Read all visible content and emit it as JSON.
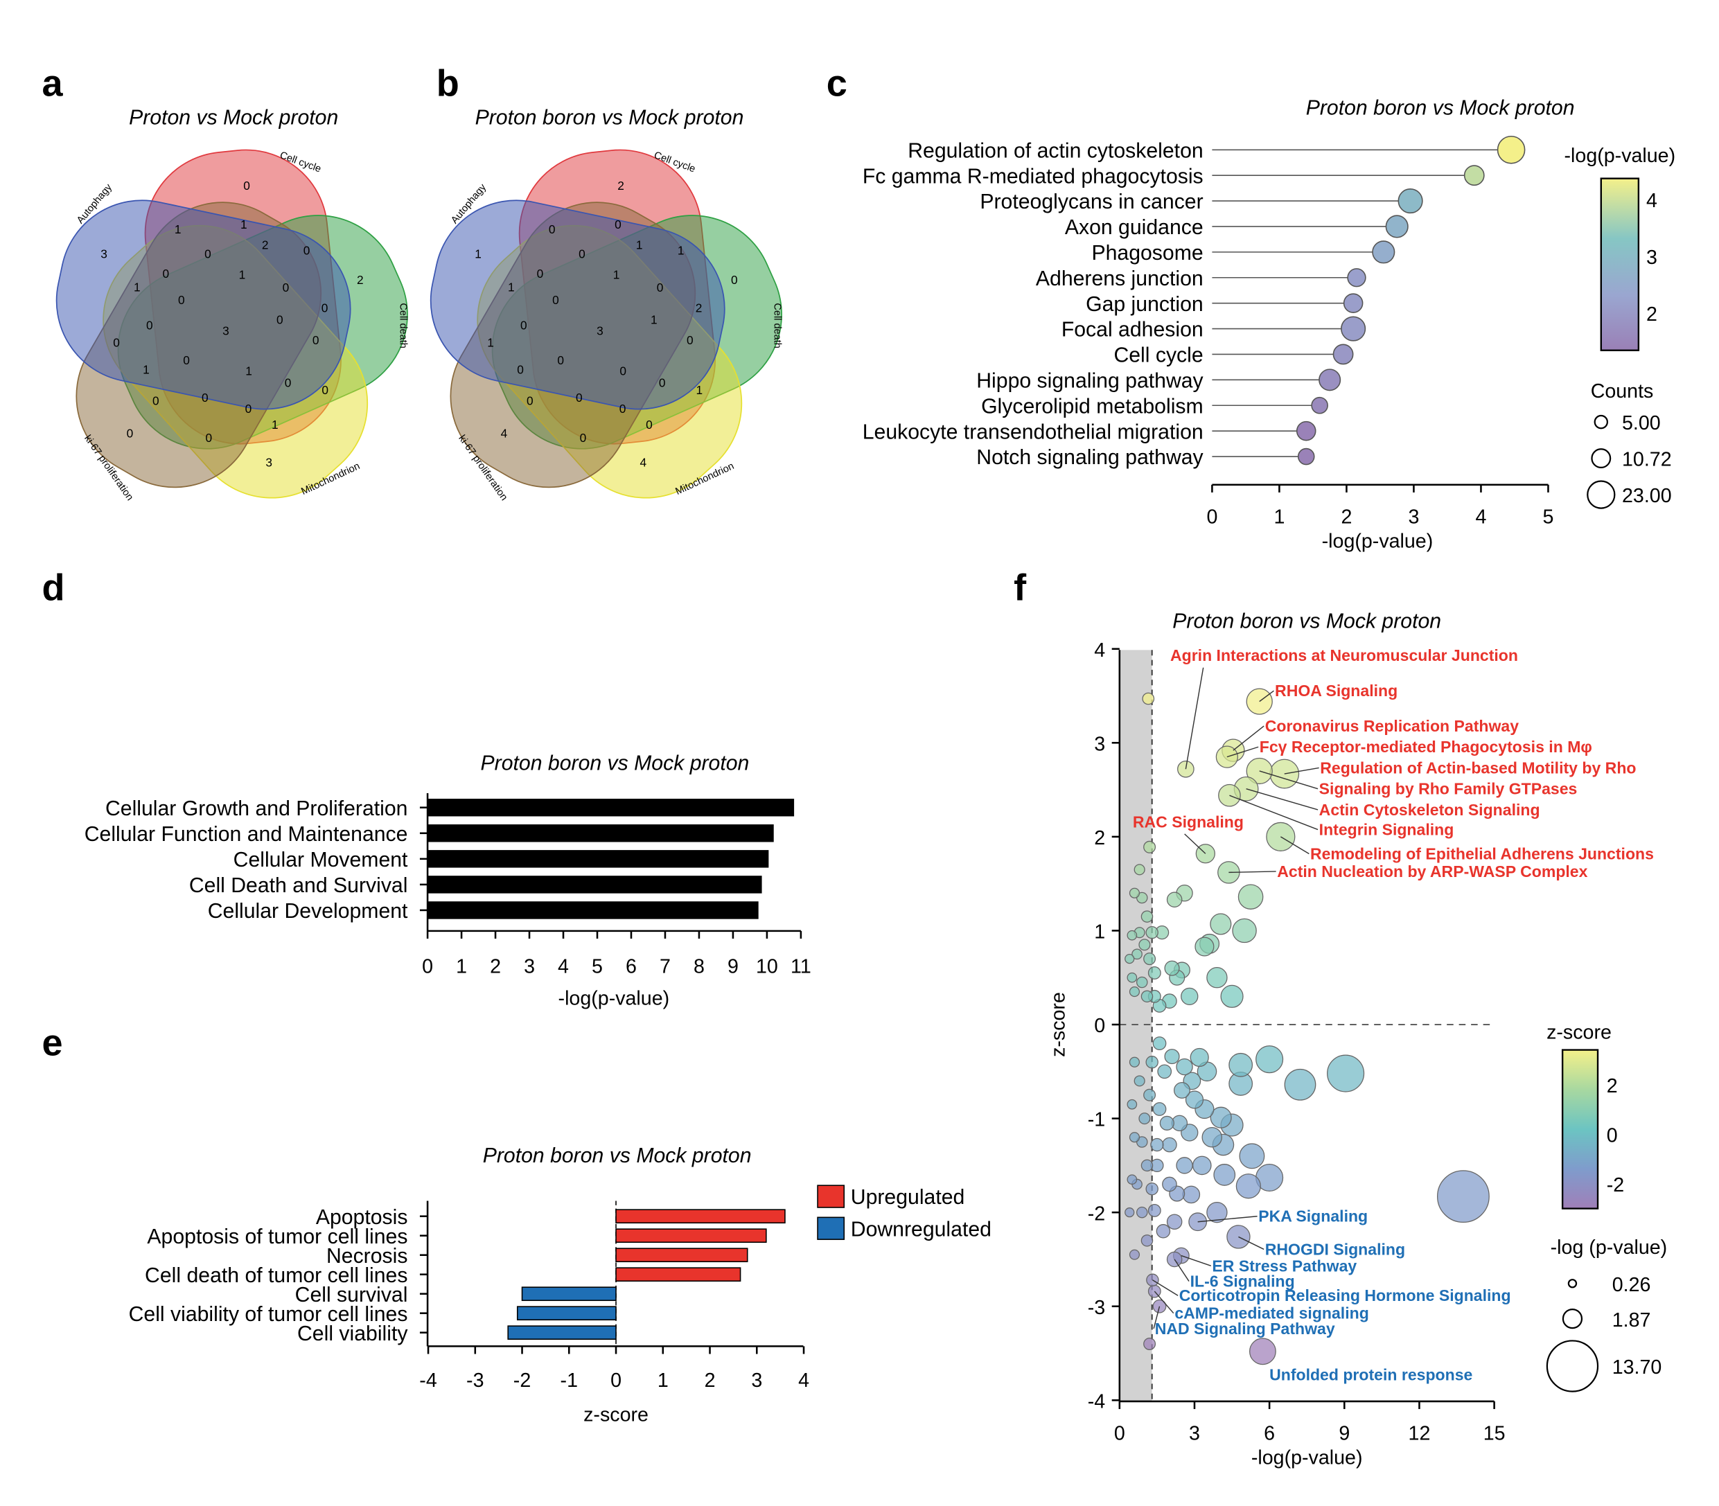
{
  "panels": {
    "a": "a",
    "b": "b",
    "c": "c",
    "d": "d",
    "e": "e",
    "f": "f"
  },
  "venn_a": {
    "title": "Proton vs Mock proton",
    "sets": [
      "Cell cycle",
      "Cell death",
      "Mitochondrion",
      "ki-67 proliferation",
      "Autophagy"
    ],
    "set_colors": [
      "#e0393e",
      "#2ea043",
      "#e6e030",
      "#8a6a3c",
      "#3a55b0"
    ],
    "counts": [
      0,
      3,
      2,
      3,
      0,
      1,
      1,
      2,
      0,
      0,
      0,
      1,
      1,
      0,
      0,
      0,
      0,
      0,
      3,
      0,
      0,
      0,
      1,
      1,
      0,
      0,
      0,
      0,
      0,
      1,
      0
    ]
  },
  "venn_b": {
    "title": "Proton boron vs Mock proton",
    "sets": [
      "Cell cycle",
      "Cell death",
      "Mitochondrion",
      "ki-67 proliferation",
      "Autophagy"
    ],
    "counts": [
      2,
      1,
      0,
      4,
      4,
      0,
      0,
      1,
      1,
      0,
      0,
      1,
      1,
      0,
      2,
      0,
      1,
      0,
      3,
      0,
      1,
      0,
      0,
      0,
      0,
      1,
      0,
      0,
      0,
      0,
      0
    ]
  },
  "chart_data": [
    {
      "panel": "c",
      "type": "scatter",
      "title": "Proton boron vs Mock proton",
      "categories": [
        "Regulation of actin cytoskeleton",
        "Fc gamma R-mediated phagocytosis",
        "Proteoglycans in cancer",
        "Axon guidance",
        "Phagosome",
        "Adherens junction",
        "Gap junction",
        "Focal adhesion",
        "Cell cycle",
        "Hippo signaling pathway",
        "Glycerolipid metabolism",
        "Leukocyte transendothelial migration",
        "Notch signaling pathway"
      ],
      "values": [
        4.45,
        3.9,
        2.95,
        2.75,
        2.55,
        2.15,
        2.1,
        2.1,
        1.95,
        1.75,
        1.6,
        1.4,
        1.4
      ],
      "counts": [
        23,
        12,
        18,
        15,
        15,
        10,
        11,
        18,
        12,
        14,
        8,
        11,
        8
      ],
      "xlabel": "-log(p-value)",
      "xlim": [
        0,
        5
      ],
      "xticks": [
        "0",
        "1",
        "2",
        "3",
        "4",
        "5"
      ],
      "colorbar": {
        "title": "-log(p-value)",
        "range": [
          1.34,
          4.37
        ],
        "ticks": [
          "4",
          "3",
          "2"
        ],
        "colors": [
          "#f4f08a",
          "#86c6c4",
          "#9aa6d0",
          "#9a80b6"
        ]
      },
      "size_legend": {
        "title": "Counts",
        "values": [
          "5.00",
          "10.72",
          "23.00"
        ]
      }
    },
    {
      "panel": "d",
      "type": "bar",
      "title": "Proton boron vs Mock proton",
      "categories": [
        "Cellular Growth and Proliferation",
        "Cellular Function and Maintenance",
        "Cellular Movement",
        "Cell Death and Survival",
        "Cellular Development"
      ],
      "values": [
        10.8,
        10.2,
        10.05,
        9.85,
        9.75
      ],
      "xlabel": "-log(p-value)",
      "xlim": [
        0,
        11
      ],
      "xticks": [
        "0",
        "1",
        "2",
        "3",
        "4",
        "5",
        "6",
        "7",
        "8",
        "9",
        "10",
        "11"
      ],
      "color": "#000000"
    },
    {
      "panel": "e",
      "type": "bar",
      "title": "Proton boron vs Mock proton",
      "categories": [
        "Apoptosis",
        "Apoptosis of tumor cell lines",
        "Necrosis",
        "Cell death of tumor cell lines",
        "Cell survival",
        "Cell viability of tumor cell lines",
        "Cell viability"
      ],
      "values": [
        3.6,
        3.2,
        2.8,
        2.65,
        -2.0,
        -2.1,
        -2.3
      ],
      "xlabel": "z-score",
      "xlim": [
        -4,
        4
      ],
      "xticks": [
        "-4",
        "-3",
        "-2",
        "-1",
        "0",
        "1",
        "2",
        "3",
        "4"
      ],
      "legend": [
        {
          "name": "Upregulated",
          "color": "#e8342c"
        },
        {
          "name": "Downregulated",
          "color": "#1f6fb5"
        }
      ]
    },
    {
      "panel": "f",
      "type": "scatter",
      "title": "Proton boron vs Mock proton",
      "xlabel": "-log(p-value)",
      "ylabel": "z-score",
      "xlim": [
        0,
        15
      ],
      "ylim": [
        -4,
        4
      ],
      "xticks": [
        "0",
        "3",
        "6",
        "9",
        "12",
        "15"
      ],
      "yticks": [
        "4",
        "3",
        "2",
        "1",
        "0",
        "-1",
        "-2",
        "-3",
        "-4"
      ],
      "threshold": 1.3,
      "label_colors": {
        "up": "#e8342c",
        "down": "#1f6fb5"
      },
      "colorbar": {
        "title": "z-score",
        "range": [
          -3.0,
          3.4
        ],
        "ticks": [
          "2",
          "0",
          "-2"
        ]
      },
      "size_legend": {
        "title": "-log (p-value)",
        "values": [
          "0.26",
          "1.87",
          "13.70"
        ]
      },
      "labeled_points": [
        {
          "label": "Agrin Interactions at Neuromuscular Junction",
          "x": 2.65,
          "z": 2.72,
          "dir": "up"
        },
        {
          "label": "RHOA Signaling",
          "x": 5.6,
          "z": 3.44,
          "dir": "up"
        },
        {
          "label": "Coronavirus Replication Pathway",
          "x": 4.55,
          "z": 2.92,
          "dir": "up"
        },
        {
          "label": "Fcγ Receptor-mediated Phagocytosis in Mφ",
          "x": 4.3,
          "z": 2.85,
          "dir": "up"
        },
        {
          "label": "Regulation of Actin-based Motility by Rho",
          "x": 6.6,
          "z": 2.67,
          "dir": "up"
        },
        {
          "label": "Signaling by Rho Family GTPases",
          "x": 5.6,
          "z": 2.7,
          "dir": "up"
        },
        {
          "label": "Actin Cytoskeleton Signaling",
          "x": 5.07,
          "z": 2.51,
          "dir": "up"
        },
        {
          "label": "Integrin Signaling",
          "x": 4.4,
          "z": 2.44,
          "dir": "up"
        },
        {
          "label": "Remodeling of Epithelial Adherens Junctions",
          "x": 6.45,
          "z": 2.0,
          "dir": "up"
        },
        {
          "label": "RAC Signaling",
          "x": 3.44,
          "z": 1.82,
          "dir": "up"
        },
        {
          "label": "Actin Nucleation by ARP-WASP Complex",
          "x": 4.37,
          "z": 1.62,
          "dir": "up"
        },
        {
          "label": "PKA Signaling",
          "x": 3.13,
          "z": -2.1,
          "dir": "down"
        },
        {
          "label": "RHOGDI Signaling",
          "x": 4.76,
          "z": -2.26,
          "dir": "down"
        },
        {
          "label": "ER Stress Pathway",
          "x": 2.47,
          "z": -2.46,
          "dir": "down"
        },
        {
          "label": "IL-6 Signaling",
          "x": 2.2,
          "z": -2.5,
          "dir": "down"
        },
        {
          "label": "Corticotropin Releasing Hormone Signaling",
          "x": 1.32,
          "z": -2.72,
          "dir": "down"
        },
        {
          "label": "cAMP-mediated signaling",
          "x": 1.4,
          "z": -2.84,
          "dir": "down"
        },
        {
          "label": "NAD Signaling Pathway",
          "x": 1.6,
          "z": -3.0,
          "dir": "down"
        },
        {
          "label": "Unfolded protein response",
          "x": 5.73,
          "z": -3.48,
          "dir": "down"
        }
      ],
      "points": [
        [
          1.15,
          3.47
        ],
        [
          1.2,
          1.89
        ],
        [
          0.8,
          1.65
        ],
        [
          5.25,
          1.36
        ],
        [
          5.0,
          1.0
        ],
        [
          4.05,
          1.07
        ],
        [
          3.4,
          0.83
        ],
        [
          3.6,
          0.86
        ],
        [
          2.5,
          0.58
        ],
        [
          4.5,
          0.3
        ],
        [
          3.9,
          0.5
        ],
        [
          2.8,
          0.3
        ],
        [
          2.6,
          1.4
        ],
        [
          2.2,
          1.33
        ],
        [
          1.7,
          0.98
        ],
        [
          2.1,
          0.6
        ],
        [
          2.3,
          0.5
        ],
        [
          2.0,
          0.25
        ],
        [
          0.6,
          1.4
        ],
        [
          0.9,
          1.35
        ],
        [
          1.1,
          1.15
        ],
        [
          1.3,
          0.98
        ],
        [
          0.5,
          0.95
        ],
        [
          0.8,
          0.98
        ],
        [
          1.2,
          0.7
        ],
        [
          0.7,
          0.75
        ],
        [
          0.5,
          0.5
        ],
        [
          0.9,
          0.45
        ],
        [
          1.4,
          0.55
        ],
        [
          0.6,
          0.35
        ],
        [
          1.1,
          0.3
        ],
        [
          1.6,
          0.2
        ],
        [
          1.0,
          0.85
        ],
        [
          0.4,
          0.7
        ],
        [
          1.4,
          0.3
        ],
        [
          9.05,
          -0.52
        ],
        [
          7.23,
          -0.64
        ],
        [
          6.0,
          -0.37
        ],
        [
          4.85,
          -0.63
        ],
        [
          4.85,
          -0.43
        ],
        [
          13.76,
          -1.83
        ],
        [
          6.0,
          -1.63
        ],
        [
          5.16,
          -1.72
        ],
        [
          5.3,
          -1.4
        ],
        [
          4.15,
          -1.28
        ],
        [
          4.5,
          -1.07
        ],
        [
          4.06,
          -0.99
        ],
        [
          3.9,
          -2.0
        ],
        [
          2.87,
          -1.81
        ],
        [
          2.3,
          -1.8
        ],
        [
          2.6,
          -1.5
        ],
        [
          2.0,
          -1.7
        ],
        [
          3.0,
          -0.8
        ],
        [
          2.6,
          -0.45
        ],
        [
          3.2,
          -0.35
        ],
        [
          2.1,
          -0.34
        ],
        [
          2.4,
          -1.05
        ],
        [
          2.0,
          -1.28
        ],
        [
          1.5,
          -1.28
        ],
        [
          1.4,
          -1.98
        ],
        [
          1.75,
          -2.2
        ],
        [
          3.5,
          -0.5
        ],
        [
          3.4,
          -0.9
        ],
        [
          2.8,
          -1.15
        ],
        [
          3.3,
          -1.5
        ],
        [
          4.2,
          -1.6
        ],
        [
          2.5,
          -0.7
        ],
        [
          1.8,
          -0.5
        ],
        [
          1.6,
          -0.9
        ],
        [
          1.9,
          -1.05
        ],
        [
          1.3,
          -0.4
        ],
        [
          1.2,
          -0.75
        ],
        [
          1.0,
          -1.0
        ],
        [
          0.8,
          -0.6
        ],
        [
          0.6,
          -0.4
        ],
        [
          0.5,
          -0.85
        ],
        [
          0.9,
          -1.25
        ],
        [
          0.6,
          -1.2
        ],
        [
          1.1,
          -1.5
        ],
        [
          0.7,
          -1.7
        ],
        [
          1.3,
          -1.75
        ],
        [
          0.5,
          -1.65
        ],
        [
          0.9,
          -2.0
        ],
        [
          0.4,
          -2.0
        ],
        [
          1.1,
          -2.3
        ],
        [
          0.6,
          -2.45
        ],
        [
          1.2,
          -3.4
        ],
        [
          1.6,
          -0.2
        ],
        [
          2.9,
          -0.6
        ],
        [
          3.7,
          -1.2
        ],
        [
          1.5,
          -1.5
        ],
        [
          2.2,
          -2.1
        ]
      ]
    }
  ]
}
